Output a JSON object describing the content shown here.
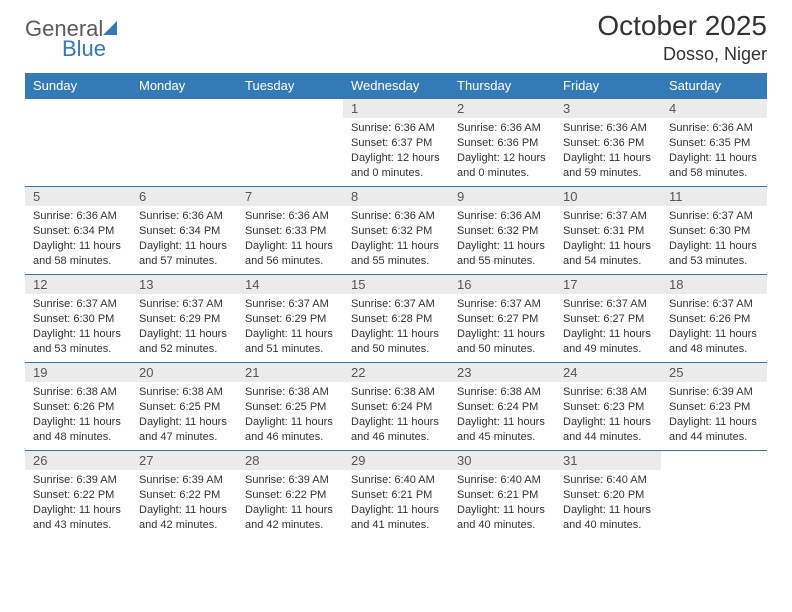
{
  "logo": {
    "text1": "General",
    "text2": "Blue"
  },
  "title": "October 2025",
  "location": "Dosso, Niger",
  "colors": {
    "header_bg": "#337ab7",
    "header_text": "#ffffff",
    "daynum_bg": "#ebebeb",
    "border": "#337ab7",
    "text": "#333333"
  },
  "weekdays": [
    "Sunday",
    "Monday",
    "Tuesday",
    "Wednesday",
    "Thursday",
    "Friday",
    "Saturday"
  ],
  "weeks": [
    [
      {
        "n": "",
        "sr": "",
        "ss": "",
        "d1": "",
        "d2": ""
      },
      {
        "n": "",
        "sr": "",
        "ss": "",
        "d1": "",
        "d2": ""
      },
      {
        "n": "",
        "sr": "",
        "ss": "",
        "d1": "",
        "d2": ""
      },
      {
        "n": "1",
        "sr": "Sunrise: 6:36 AM",
        "ss": "Sunset: 6:37 PM",
        "d1": "Daylight: 12 hours",
        "d2": "and 0 minutes."
      },
      {
        "n": "2",
        "sr": "Sunrise: 6:36 AM",
        "ss": "Sunset: 6:36 PM",
        "d1": "Daylight: 12 hours",
        "d2": "and 0 minutes."
      },
      {
        "n": "3",
        "sr": "Sunrise: 6:36 AM",
        "ss": "Sunset: 6:36 PM",
        "d1": "Daylight: 11 hours",
        "d2": "and 59 minutes."
      },
      {
        "n": "4",
        "sr": "Sunrise: 6:36 AM",
        "ss": "Sunset: 6:35 PM",
        "d1": "Daylight: 11 hours",
        "d2": "and 58 minutes."
      }
    ],
    [
      {
        "n": "5",
        "sr": "Sunrise: 6:36 AM",
        "ss": "Sunset: 6:34 PM",
        "d1": "Daylight: 11 hours",
        "d2": "and 58 minutes."
      },
      {
        "n": "6",
        "sr": "Sunrise: 6:36 AM",
        "ss": "Sunset: 6:34 PM",
        "d1": "Daylight: 11 hours",
        "d2": "and 57 minutes."
      },
      {
        "n": "7",
        "sr": "Sunrise: 6:36 AM",
        "ss": "Sunset: 6:33 PM",
        "d1": "Daylight: 11 hours",
        "d2": "and 56 minutes."
      },
      {
        "n": "8",
        "sr": "Sunrise: 6:36 AM",
        "ss": "Sunset: 6:32 PM",
        "d1": "Daylight: 11 hours",
        "d2": "and 55 minutes."
      },
      {
        "n": "9",
        "sr": "Sunrise: 6:36 AM",
        "ss": "Sunset: 6:32 PM",
        "d1": "Daylight: 11 hours",
        "d2": "and 55 minutes."
      },
      {
        "n": "10",
        "sr": "Sunrise: 6:37 AM",
        "ss": "Sunset: 6:31 PM",
        "d1": "Daylight: 11 hours",
        "d2": "and 54 minutes."
      },
      {
        "n": "11",
        "sr": "Sunrise: 6:37 AM",
        "ss": "Sunset: 6:30 PM",
        "d1": "Daylight: 11 hours",
        "d2": "and 53 minutes."
      }
    ],
    [
      {
        "n": "12",
        "sr": "Sunrise: 6:37 AM",
        "ss": "Sunset: 6:30 PM",
        "d1": "Daylight: 11 hours",
        "d2": "and 53 minutes."
      },
      {
        "n": "13",
        "sr": "Sunrise: 6:37 AM",
        "ss": "Sunset: 6:29 PM",
        "d1": "Daylight: 11 hours",
        "d2": "and 52 minutes."
      },
      {
        "n": "14",
        "sr": "Sunrise: 6:37 AM",
        "ss": "Sunset: 6:29 PM",
        "d1": "Daylight: 11 hours",
        "d2": "and 51 minutes."
      },
      {
        "n": "15",
        "sr": "Sunrise: 6:37 AM",
        "ss": "Sunset: 6:28 PM",
        "d1": "Daylight: 11 hours",
        "d2": "and 50 minutes."
      },
      {
        "n": "16",
        "sr": "Sunrise: 6:37 AM",
        "ss": "Sunset: 6:27 PM",
        "d1": "Daylight: 11 hours",
        "d2": "and 50 minutes."
      },
      {
        "n": "17",
        "sr": "Sunrise: 6:37 AM",
        "ss": "Sunset: 6:27 PM",
        "d1": "Daylight: 11 hours",
        "d2": "and 49 minutes."
      },
      {
        "n": "18",
        "sr": "Sunrise: 6:37 AM",
        "ss": "Sunset: 6:26 PM",
        "d1": "Daylight: 11 hours",
        "d2": "and 48 minutes."
      }
    ],
    [
      {
        "n": "19",
        "sr": "Sunrise: 6:38 AM",
        "ss": "Sunset: 6:26 PM",
        "d1": "Daylight: 11 hours",
        "d2": "and 48 minutes."
      },
      {
        "n": "20",
        "sr": "Sunrise: 6:38 AM",
        "ss": "Sunset: 6:25 PM",
        "d1": "Daylight: 11 hours",
        "d2": "and 47 minutes."
      },
      {
        "n": "21",
        "sr": "Sunrise: 6:38 AM",
        "ss": "Sunset: 6:25 PM",
        "d1": "Daylight: 11 hours",
        "d2": "and 46 minutes."
      },
      {
        "n": "22",
        "sr": "Sunrise: 6:38 AM",
        "ss": "Sunset: 6:24 PM",
        "d1": "Daylight: 11 hours",
        "d2": "and 46 minutes."
      },
      {
        "n": "23",
        "sr": "Sunrise: 6:38 AM",
        "ss": "Sunset: 6:24 PM",
        "d1": "Daylight: 11 hours",
        "d2": "and 45 minutes."
      },
      {
        "n": "24",
        "sr": "Sunrise: 6:38 AM",
        "ss": "Sunset: 6:23 PM",
        "d1": "Daylight: 11 hours",
        "d2": "and 44 minutes."
      },
      {
        "n": "25",
        "sr": "Sunrise: 6:39 AM",
        "ss": "Sunset: 6:23 PM",
        "d1": "Daylight: 11 hours",
        "d2": "and 44 minutes."
      }
    ],
    [
      {
        "n": "26",
        "sr": "Sunrise: 6:39 AM",
        "ss": "Sunset: 6:22 PM",
        "d1": "Daylight: 11 hours",
        "d2": "and 43 minutes."
      },
      {
        "n": "27",
        "sr": "Sunrise: 6:39 AM",
        "ss": "Sunset: 6:22 PM",
        "d1": "Daylight: 11 hours",
        "d2": "and 42 minutes."
      },
      {
        "n": "28",
        "sr": "Sunrise: 6:39 AM",
        "ss": "Sunset: 6:22 PM",
        "d1": "Daylight: 11 hours",
        "d2": "and 42 minutes."
      },
      {
        "n": "29",
        "sr": "Sunrise: 6:40 AM",
        "ss": "Sunset: 6:21 PM",
        "d1": "Daylight: 11 hours",
        "d2": "and 41 minutes."
      },
      {
        "n": "30",
        "sr": "Sunrise: 6:40 AM",
        "ss": "Sunset: 6:21 PM",
        "d1": "Daylight: 11 hours",
        "d2": "and 40 minutes."
      },
      {
        "n": "31",
        "sr": "Sunrise: 6:40 AM",
        "ss": "Sunset: 6:20 PM",
        "d1": "Daylight: 11 hours",
        "d2": "and 40 minutes."
      },
      {
        "n": "",
        "sr": "",
        "ss": "",
        "d1": "",
        "d2": ""
      }
    ]
  ]
}
